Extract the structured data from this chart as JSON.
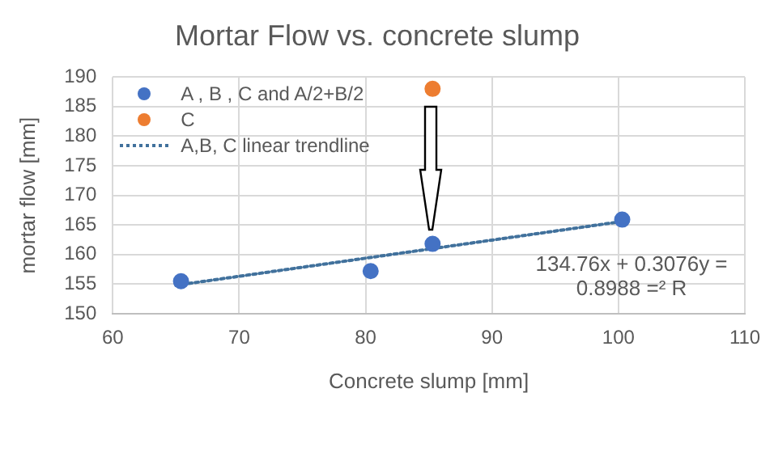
{
  "chart_data": {
    "type": "scatter",
    "title": "Mortar Flow vs. concrete slump",
    "xlabel": "Concrete slump [mm]",
    "ylabel": "mortar flow [mm]",
    "xlim": [
      60,
      110
    ],
    "xticks": [
      60,
      70,
      80,
      90,
      100,
      110
    ],
    "ylim": [
      150,
      190
    ],
    "yticks": [
      150,
      155,
      160,
      165,
      170,
      175,
      180,
      185,
      190
    ],
    "grid": true,
    "legend": "top left",
    "marker": "circle",
    "series": [
      {
        "name": "A , B , C and A/2+B/2",
        "color": "#4472c4",
        "x": [
          65.4,
          80.4,
          85.3,
          100.3
        ],
        "values": [
          155.5,
          157.2,
          161.8,
          165.9
        ]
      },
      {
        "name": "C",
        "color": "#ed7d31",
        "x": [
          85.3
        ],
        "values": [
          188
        ]
      },
      {
        "name": "A,B, C linear trendline",
        "type": "line",
        "color": "#41719c",
        "line_style": "dotted",
        "marker": "none",
        "x": [
          65,
          100
        ],
        "values": [
          154.8,
          165.5
        ]
      }
    ],
    "annotations": [
      "134.76x + 0.3076y = 0.8988 =² R"
    ]
  }
}
